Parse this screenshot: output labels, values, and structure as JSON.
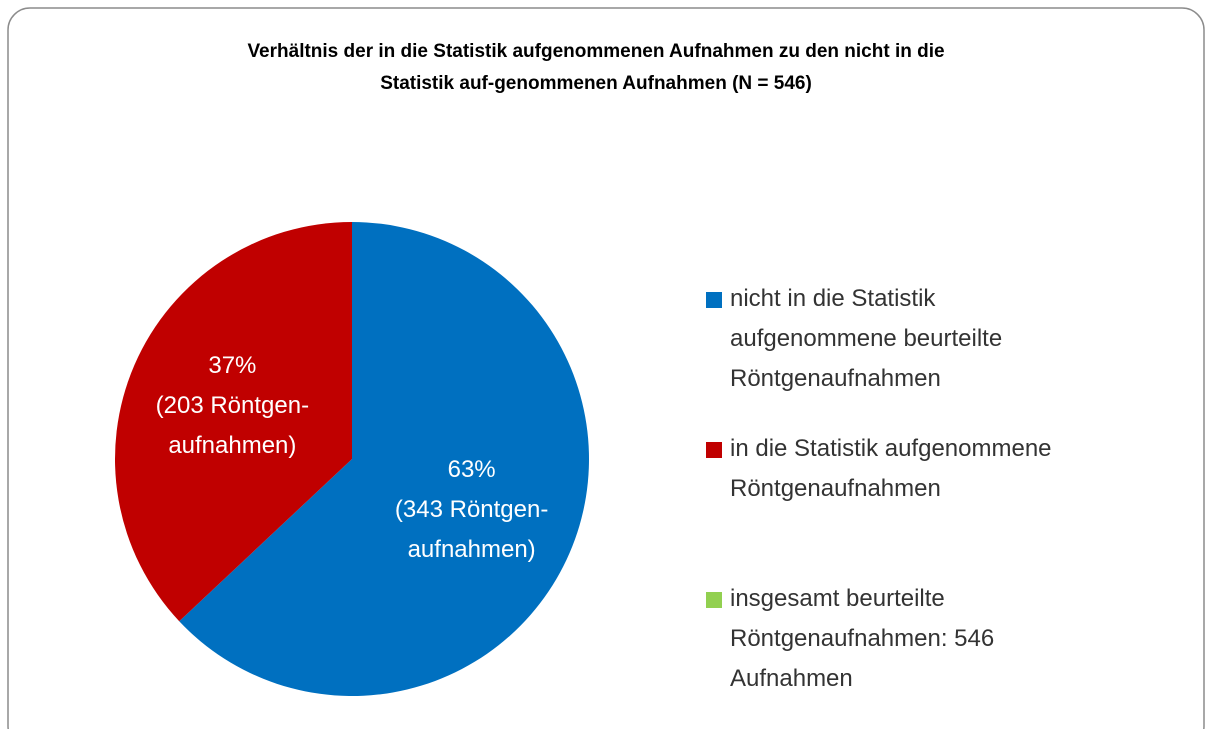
{
  "chart_data": {
    "type": "pie",
    "title": "Verhältnis der in die Statistik aufgenommenen Aufnahmen zu den nicht in die\nStatistik auf-genommenen Aufnahmen (N = 546)",
    "series": [
      {
        "name": "Aufnahmen",
        "categories": [
          "nicht in die Statistik\naufgenommene beurteilte\nRöntgenaufnahmen",
          "in die Statistik aufgenommene\nRöntgenaufnahmen",
          "insgesamt beurteilte\nRöntgenaufnahmen: 546\nAufnahmen"
        ],
        "values": [
          63,
          37,
          0
        ],
        "value_labels": [
          "63%\n(343 Röntgen-\naufnahmen)",
          "37%\n(203 Röntgen-\naufnahmen)",
          null
        ],
        "colors": [
          "#0070c0",
          "#c00000",
          "#92d050"
        ]
      }
    ],
    "legend": "right"
  }
}
